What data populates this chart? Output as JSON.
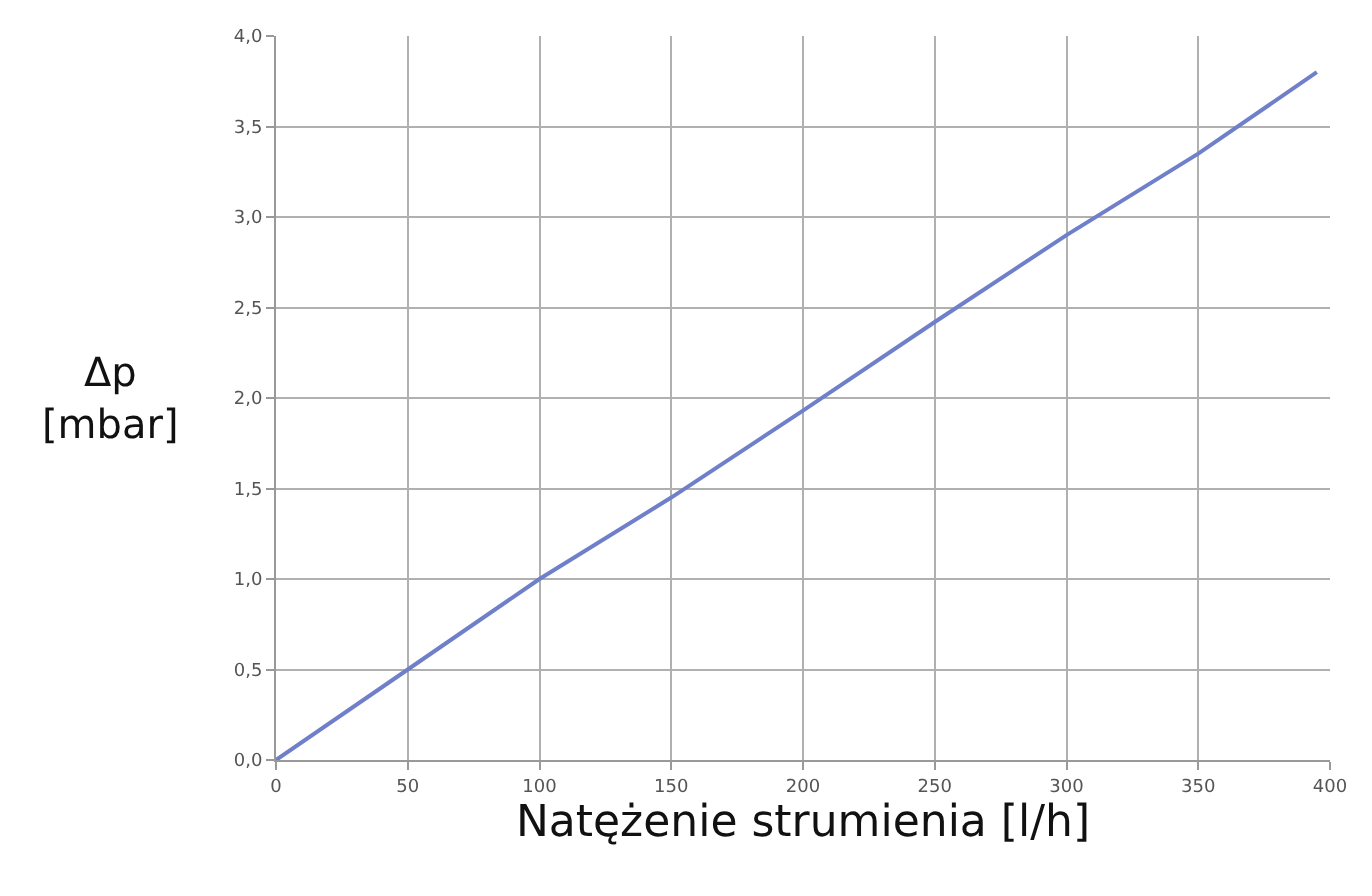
{
  "chart_data": {
    "type": "line",
    "xlabel": "Natężenie strumienia [l/h]",
    "ylabel": "Δp\n[mbar]",
    "x": [
      0,
      50,
      100,
      150,
      200,
      250,
      300,
      350,
      395
    ],
    "series": [
      {
        "color": "#6f7fc9",
        "values": [
          0,
          0.5,
          1.0,
          1.45,
          1.93,
          2.42,
          2.9,
          3.35,
          3.8
        ]
      }
    ],
    "xlim": [
      0,
      400
    ],
    "xticks": [
      0,
      50,
      100,
      150,
      200,
      250,
      300,
      350,
      400
    ],
    "ylim": [
      0,
      4
    ],
    "yticks": [
      {
        "value": 0,
        "label": "0,0"
      },
      {
        "value": 0.5,
        "label": "0,5"
      },
      {
        "value": 1,
        "label": "1,0"
      },
      {
        "value": 1.5,
        "label": "1,5"
      },
      {
        "value": 2,
        "label": "2,0"
      },
      {
        "value": 2.5,
        "label": "2,5"
      },
      {
        "value": 3,
        "label": "3,0"
      },
      {
        "value": 3.5,
        "label": "3,5"
      },
      {
        "value": 4,
        "label": "4,0"
      }
    ],
    "grid": true,
    "marker": "none",
    "line_style": "solid",
    "legend": false
  }
}
